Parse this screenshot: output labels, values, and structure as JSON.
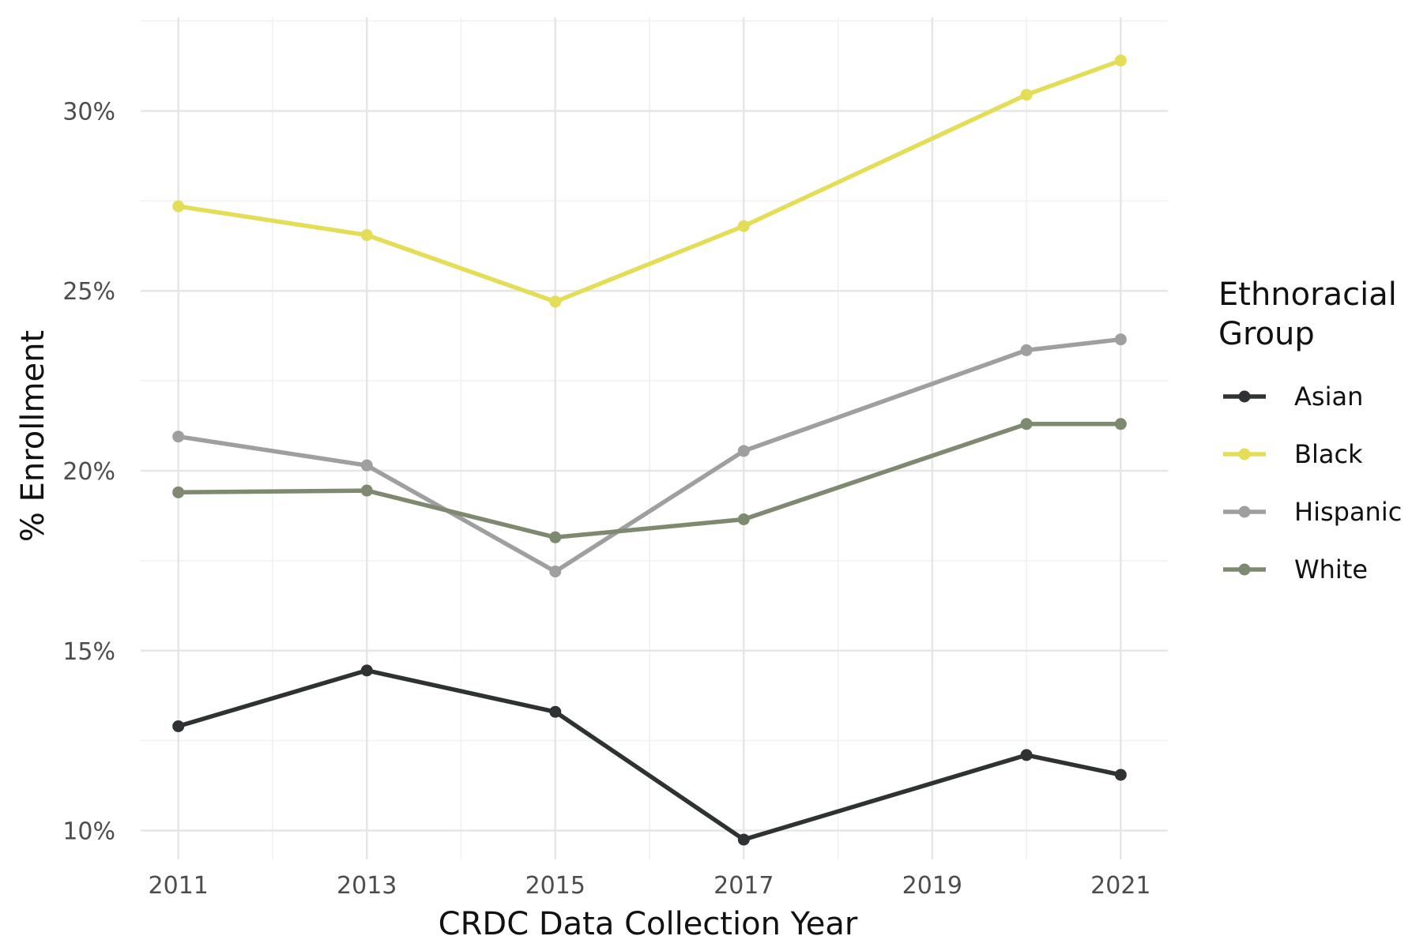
{
  "chart_data": {
    "type": "line",
    "title": "",
    "xlabel": "CRDC Data Collection Year",
    "ylabel": "% Enrollment",
    "x": [
      2011,
      2013,
      2015,
      2017,
      2020,
      2021
    ],
    "xticks": [
      "2011",
      "2013",
      "2015",
      "2017",
      "2019",
      "2021"
    ],
    "yticks": [
      "10%",
      "15%",
      "20%",
      "25%",
      "30%"
    ],
    "xlim": [
      2010.6,
      2021.5
    ],
    "ylim": [
      9.2,
      32.6
    ],
    "grid": true,
    "legend": {
      "title_line1": "Ethnoracial",
      "title_line2": "Group",
      "placement": "right"
    },
    "series": [
      {
        "name": "Asian",
        "color": "#2f3232",
        "values": [
          12.9,
          14.45,
          13.3,
          9.75,
          12.1,
          11.55
        ]
      },
      {
        "name": "Black",
        "color": "#e4dd57",
        "values": [
          27.35,
          26.55,
          24.7,
          26.8,
          30.45,
          31.4
        ]
      },
      {
        "name": "Hispanic",
        "color": "#9f9fa0",
        "values": [
          20.95,
          20.15,
          17.2,
          20.55,
          23.35,
          23.65
        ]
      },
      {
        "name": "White",
        "color": "#7d8a70",
        "values": [
          19.4,
          19.45,
          18.15,
          18.65,
          21.3,
          21.3
        ]
      }
    ]
  }
}
